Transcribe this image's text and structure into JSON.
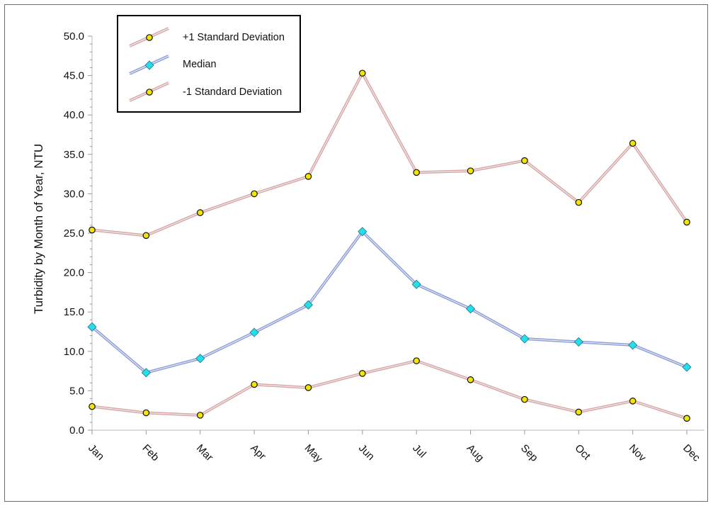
{
  "chart_data": {
    "type": "line",
    "title": "",
    "xlabel": "",
    "ylabel": "Turbidity by Month of Year, NTU",
    "ylim": [
      0,
      50
    ],
    "yticks": [
      "0.0",
      "5.0",
      "10.0",
      "15.0",
      "20.0",
      "25.0",
      "30.0",
      "35.0",
      "40.0",
      "45.0",
      "50.0"
    ],
    "grid": false,
    "legend_position": "top-left",
    "categories": [
      "Jan",
      "Feb",
      "Mar",
      "Apr",
      "May",
      "Jun",
      "Jul",
      "Aug",
      "Sep",
      "Oct",
      "Nov",
      "Dec"
    ],
    "series": [
      {
        "name": "+1 Standard Deviation",
        "line_color": "#d8a8a8",
        "marker_color": "#f2e600",
        "marker": "circle",
        "values": [
          25.4,
          24.7,
          27.6,
          30.0,
          32.2,
          45.3,
          32.7,
          32.9,
          34.2,
          28.9,
          36.4,
          26.4
        ]
      },
      {
        "name": "Median",
        "line_color": "#8fa0d8",
        "marker_color": "#22e0e8",
        "marker": "diamond",
        "values": [
          13.1,
          7.3,
          9.1,
          12.4,
          15.9,
          25.2,
          18.5,
          15.4,
          11.6,
          11.2,
          10.8,
          8.0
        ]
      },
      {
        "name": "-1 Standard Deviation",
        "line_color": "#d8a8a8",
        "marker_color": "#f2e600",
        "marker": "circle",
        "values": [
          3.0,
          2.2,
          1.9,
          5.8,
          5.4,
          7.2,
          8.8,
          6.4,
          3.9,
          2.3,
          3.7,
          1.5
        ]
      }
    ]
  }
}
